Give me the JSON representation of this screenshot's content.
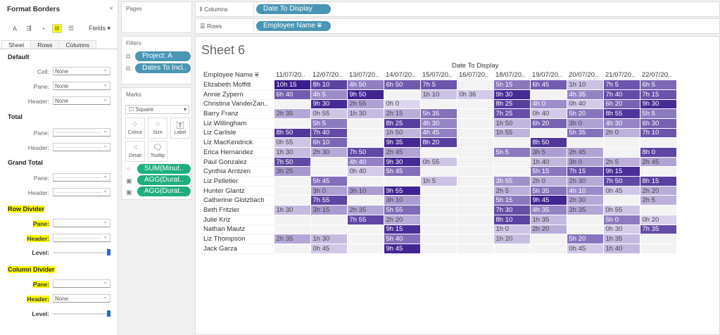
{
  "format_panel": {
    "title": "Format Borders",
    "close": "×",
    "fields": "Fields ▾",
    "tools": [
      "A",
      "⇶",
      "◔",
      "⊞",
      "☰"
    ],
    "tabs": [
      "Sheet",
      "Rows",
      "Columns"
    ],
    "default": {
      "title": "Default",
      "cell_label": "Cell:",
      "cell": "None",
      "pane_label": "Pane:",
      "pane": "None",
      "header_label": "Header:",
      "header": "None"
    },
    "total": {
      "title": "Total",
      "pane_label": "Pane:",
      "header_label": "Header:"
    },
    "grand_total": {
      "title": "Grand Total",
      "pane_label": "Pane:",
      "header_label": "Header:"
    },
    "row_divider": {
      "title": "Row Divider",
      "pane_label": "Pane:",
      "header_label": "Header:",
      "level_label": "Level:",
      "level": 1.0
    },
    "column_divider": {
      "title": "Column Divider",
      "pane_label": "Pane:",
      "header_label": "Header:",
      "header": "None",
      "level_label": "Level:",
      "level": 1.0
    },
    "highlight_color": "#ffff00"
  },
  "pages": {
    "title": "Pages"
  },
  "filters": {
    "title": "Filters",
    "items": [
      "Project: A",
      "Dates To Incl.."
    ]
  },
  "marks": {
    "title": "Marks",
    "type": "Square",
    "buttons": [
      "Colour",
      "Size",
      "Label",
      "Detail",
      "Tooltip"
    ],
    "fields": [
      "SUM(Minut..",
      "AGG(Durat..",
      "AGG(Durat.."
    ]
  },
  "shelves": {
    "columns_label": "Columns",
    "columns_pill": "Date To Display",
    "rows_label": "Rows",
    "rows_pill": "Employee Name"
  },
  "sheet": {
    "title": "Sheet 6",
    "column_header": "Date To Display",
    "row_header": "Employee Name",
    "dates": [
      "11/07/20..",
      "12/07/20..",
      "13/07/20..",
      "14/07/20..",
      "15/07/20..",
      "16/07/20..",
      "18/07/20..",
      "19/07/20..",
      "20/07/20..",
      "21/07/20..",
      "22/07/20.."
    ],
    "rows": [
      {
        "name": "Elizabeth Moffitt",
        "v": [
          "10h 15",
          "8h 10",
          "4h 50",
          "6h 50",
          "7h 5",
          "",
          "5h 15",
          "6h 45",
          "1h 10",
          "7h 5",
          "6h 5"
        ]
      },
      {
        "name": "Annie Zypern",
        "v": [
          "6h 40",
          "4h 5",
          "9h 50",
          "",
          "1h 10",
          "0h 36",
          "9h 30",
          "",
          "4h 35",
          "7h 40",
          "7h 15"
        ]
      },
      {
        "name": "Christina VanderZan..",
        "v": [
          "",
          "9h 30",
          "2h 55",
          "0h 0",
          "",
          "",
          "8h 25",
          "4h 0",
          "0h 40",
          "6h 20",
          "9h 30"
        ]
      },
      {
        "name": "Barry Franz",
        "v": [
          "2h 35",
          "0h 55",
          "1h 30",
          "2h 15",
          "5h 35",
          "",
          "7h 25",
          "0h 40",
          "5h 20",
          "8h 55",
          "5h 5"
        ]
      },
      {
        "name": "Liz Willingham",
        "v": [
          "",
          "5h 5",
          "",
          "8h 25",
          "4h 30",
          "",
          "1h 50",
          "6h 20",
          "3h 0",
          "4h 30",
          "6h 30"
        ]
      },
      {
        "name": "Liz Carlisle",
        "v": [
          "8h 50",
          "7h 40",
          "",
          "1h 50",
          "4h 45",
          "",
          "1h 55",
          "",
          "5h 35",
          "2h 0",
          "7h 10"
        ]
      },
      {
        "name": "Liz MacKendrick",
        "v": [
          "0h 55",
          "6h 10",
          "",
          "9h 35",
          "8h 20",
          "",
          "",
          "8h 50",
          "",
          "",
          ""
        ]
      },
      {
        "name": "Erica Hernandez",
        "v": [
          "1h 30",
          "2h 30",
          "7h 50",
          "2h 45",
          "",
          "",
          "5h 5",
          "3h 5",
          "2h 45",
          "",
          "8h 0"
        ]
      },
      {
        "name": "Paul Gonzalez",
        "v": [
          "7h 50",
          "",
          "4h 40",
          "9h 30",
          "0h 55",
          "",
          "",
          "1h 40",
          "3h 0",
          "2h 5",
          "2h 45"
        ]
      },
      {
        "name": "Cynthia Arntzen",
        "v": [
          "3h 25",
          "",
          "0h 40",
          "5h 45",
          "",
          "",
          "",
          "5h 15",
          "7h 15",
          "9h 15",
          ""
        ]
      },
      {
        "name": "Liz Pelletier",
        "v": [
          "",
          "5h 45",
          "",
          "",
          "1h 5",
          "",
          "3h 55",
          "2h 0",
          "2h 30",
          "7h 50",
          "8h 15"
        ]
      },
      {
        "name": "Hunter Glantz",
        "v": [
          "",
          "3h 0",
          "3h 10",
          "9h 55",
          "",
          "",
          "2h 5",
          "5h 35",
          "4h 10",
          "0h 45",
          "2h 20"
        ]
      },
      {
        "name": "Catherine Glotzbach",
        "v": [
          "",
          "7h 55",
          "",
          "3h 10",
          "",
          "",
          "5h 15",
          "9h 45",
          "2h 30",
          "",
          "2h 5"
        ]
      },
      {
        "name": "Beth Fritzler",
        "v": [
          "1h 30",
          "3h 15",
          "2h 35",
          "5h 55",
          "",
          "",
          "7h 30",
          "4h 35",
          "2h 35",
          "0h 55",
          ""
        ]
      },
      {
        "name": "Julie Kriz",
        "v": [
          "",
          "",
          "7h 55",
          "2h 20",
          "",
          "",
          "8h 10",
          "1h 35",
          "",
          "5h 0",
          "0h 20"
        ]
      },
      {
        "name": "Nathan Mautz",
        "v": [
          "",
          "",
          "",
          "9h 15",
          "",
          "",
          "1h 0",
          "2h 20",
          "",
          "0h 30",
          "7h 35"
        ]
      },
      {
        "name": "Liz Thompson",
        "v": [
          "2h 35",
          "1h 30",
          "",
          "5h 40",
          "",
          "",
          "1h 20",
          "",
          "5h 20",
          "1h 35",
          ""
        ]
      },
      {
        "name": "Jack Garza",
        "v": [
          "",
          "0h 45",
          "",
          "9h 45",
          "",
          "",
          "",
          "",
          "0h 45",
          "1h 40",
          ""
        ]
      }
    ],
    "color_light": "#ddd6ef",
    "color_dark": "#3a1c8e",
    "empty_color": "#f3f3f3"
  }
}
